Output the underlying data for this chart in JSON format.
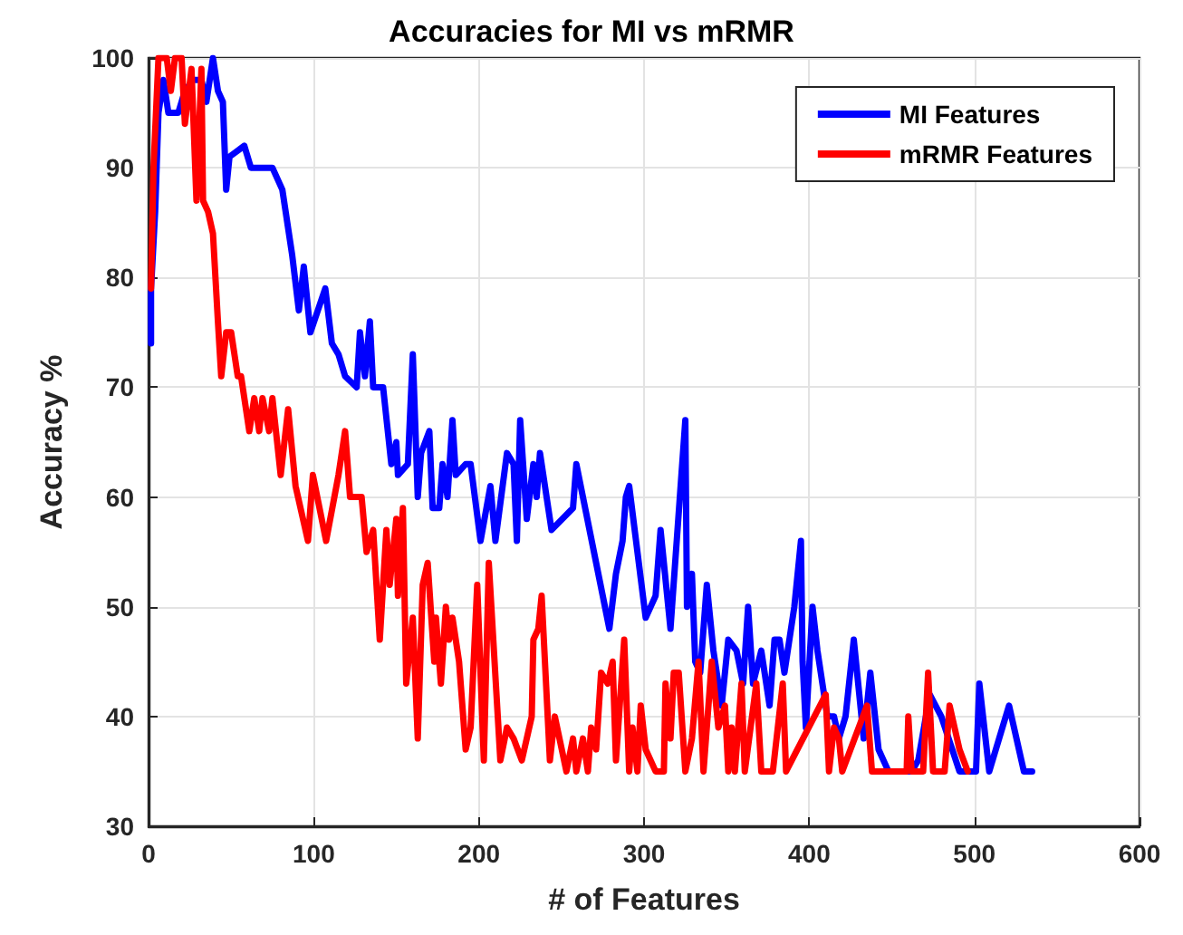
{
  "chart_data": {
    "type": "line",
    "title": "Accuracies for MI vs mRMR",
    "xlabel": "# of Features",
    "ylabel": "Accuracy %",
    "xlim": [
      0,
      600
    ],
    "xticks": [
      0,
      100,
      200,
      300,
      400,
      500,
      600
    ],
    "ylim": [
      30,
      100
    ],
    "yticks": [
      30,
      40,
      50,
      60,
      70,
      80,
      90,
      100
    ],
    "grid": true,
    "legend": "top right",
    "marker": "none",
    "line_style": "solid",
    "series": [
      {
        "name": "MI Features",
        "color": "#0000ff",
        "x": [
          1.5,
          1.5,
          4,
          6,
          9,
          12,
          18,
          22,
          27,
          32,
          35,
          39,
          42,
          45,
          47,
          49,
          58,
          62,
          75,
          81,
          87,
          91,
          94,
          98,
          107,
          111,
          115,
          119,
          126,
          128,
          131,
          134,
          136,
          142,
          147,
          150,
          151,
          157,
          160,
          163,
          165,
          170,
          172,
          176,
          178,
          181,
          184,
          186,
          192,
          195,
          201,
          207,
          210,
          217,
          221,
          223,
          225,
          229,
          233,
          235,
          237,
          244,
          257,
          259,
          279,
          283,
          287,
          289,
          291,
          301,
          307,
          310,
          316,
          325,
          326,
          329,
          331,
          334,
          338,
          342,
          347,
          351,
          356,
          360,
          363,
          366,
          371,
          376,
          379,
          382,
          385,
          391,
          395,
          396,
          398,
          402,
          405,
          411,
          415,
          418,
          422,
          427,
          433,
          437,
          442,
          448,
          462,
          466,
          473,
          480,
          491,
          501,
          503,
          509,
          521,
          530,
          535
        ],
        "values": [
          74,
          79,
          86,
          95,
          98,
          95,
          95,
          97,
          98,
          98,
          96,
          100,
          97,
          96,
          88,
          91,
          92,
          90,
          90,
          88,
          82,
          77,
          81,
          75,
          79,
          74,
          73,
          71,
          70,
          75,
          71,
          76,
          70,
          70,
          63,
          65,
          62,
          63,
          73,
          60,
          64,
          66,
          59,
          59,
          63,
          60,
          67,
          62,
          63,
          63,
          56,
          61,
          56,
          64,
          63,
          56,
          67,
          58,
          63,
          60,
          64,
          57,
          59,
          63,
          48,
          53,
          56,
          60,
          61,
          49,
          51,
          57,
          48,
          67,
          50,
          53,
          45,
          44,
          52,
          46,
          41,
          47,
          46,
          43,
          50,
          43,
          46,
          41,
          47,
          47,
          44,
          50,
          56,
          45,
          39,
          50,
          46,
          40,
          40,
          38,
          40,
          47,
          38,
          44,
          37,
          35,
          35,
          36,
          42,
          40,
          35,
          35,
          43,
          35,
          41,
          35,
          35
        ]
      },
      {
        "name": "mRMR Features",
        "color": "#ff0000",
        "x": [
          1.5,
          3,
          6,
          11,
          13.5,
          16,
          20,
          22,
          26,
          29,
          32,
          33,
          36,
          39,
          42,
          44,
          47,
          50,
          54,
          56,
          61,
          64,
          67,
          69,
          73,
          75,
          80,
          84.5,
          89,
          96.5,
          99.5,
          107.5,
          115,
          119,
          122,
          129,
          132,
          136,
          140,
          144,
          146,
          150,
          151,
          154,
          156,
          160,
          163,
          166,
          169,
          173,
          174,
          177,
          180,
          182,
          184,
          188,
          192,
          195,
          199,
          203,
          206,
          213,
          217,
          221,
          226,
          232,
          233,
          236,
          238,
          243,
          246,
          253,
          257,
          259,
          263,
          266,
          268,
          271,
          274,
          278,
          281,
          283,
          288,
          291,
          293,
          296,
          298,
          301,
          307,
          312,
          313,
          316,
          318,
          321,
          325,
          329,
          333,
          336,
          341,
          345,
          349,
          351,
          353,
          355,
          359,
          361,
          368,
          371,
          378,
          384,
          386,
          410,
          412,
          415,
          418,
          420,
          435,
          438,
          459,
          460,
          462,
          469,
          472,
          475,
          482,
          485,
          491,
          496
        ],
        "values": [
          79,
          90,
          100,
          100,
          97,
          100,
          100,
          94,
          99,
          87,
          99,
          87,
          86,
          84,
          76,
          71,
          75,
          75,
          71,
          71,
          66,
          69,
          66,
          69,
          66,
          69,
          62,
          68,
          61,
          56,
          62,
          56,
          62,
          66,
          60,
          60,
          55,
          57,
          47,
          57,
          52,
          58,
          51,
          59,
          43,
          49,
          38,
          52,
          54,
          45,
          49,
          43,
          50,
          47,
          49,
          45,
          37,
          39,
          52,
          36,
          54,
          36,
          39,
          38,
          36,
          40,
          47,
          48,
          51,
          36,
          40,
          35,
          38,
          35,
          38,
          35,
          39,
          37,
          44,
          43,
          45,
          36,
          47,
          35,
          39,
          35,
          41,
          37,
          35,
          35,
          43,
          38,
          44,
          44,
          35,
          38,
          45,
          35,
          45,
          39,
          41,
          35,
          39,
          35,
          43,
          35,
          43,
          35,
          35,
          43,
          35,
          42,
          35,
          39,
          38,
          35,
          41,
          35,
          35,
          40,
          35,
          35,
          44,
          35,
          35,
          41,
          37,
          35
        ]
      }
    ]
  }
}
